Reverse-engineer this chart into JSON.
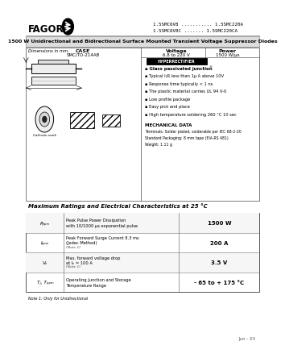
{
  "title_part1": "1.5SMC6V8 ........... 1.5SMC220A",
  "title_part2": "1.5SMC6V8C ....... 1.5SMC220CA",
  "main_title": "1500 W Unidirectional and Bidirectional Surface Mounted Transient Voltage Suppressor Diodes",
  "case_label_1": "CASE",
  "case_label_2": "SMC/TO-214AB",
  "voltage_label_1": "Voltage",
  "voltage_label_2": "6.8 to 220 V",
  "power_label_1": "Power",
  "power_label_2": "1500 W/μs",
  "brand": "FAGOR",
  "features": [
    "Glass passivated junction",
    "Typical I₂R less than 1μ A above 10V",
    "Response time typically < 1 ns",
    "The plastic material carries UL 94 V-0",
    "Low profile package",
    "Easy pick and place",
    "High temperature soldering 260 °C 10 sec"
  ],
  "mech_title": "MECHANICAL DATA",
  "mech_lines": [
    "Terminals: Solder plated, solderable per IEC 68-2-20",
    "Standard Packaging: 8 mm tape (EIA-RS 481)",
    "Weight: 1.11 g"
  ],
  "table_title": "Maximum Ratings and Electrical Characteristics at 25 °C",
  "rows": [
    {
      "symbol": "Pₚₚₘ",
      "desc1": "Peak Pulse Power Dissipation",
      "desc2": "with 10/1000 μs exponential pulse",
      "desc3": "",
      "value": "1500 W",
      "note": ""
    },
    {
      "symbol": "Iₚₚₘ",
      "desc1": "Peak Forward Surge Current 8.3 ms",
      "desc2": "(Jedec Method)",
      "desc3": "(Note 1)",
      "value": "200 A",
      "note": "1"
    },
    {
      "symbol": "Vₙ",
      "desc1": "Max. forward voltage drop",
      "desc2": "at Iₙ = 100 A",
      "desc3": "(Note 1)",
      "value": "3.5 V",
      "note": "1"
    },
    {
      "symbol": "Tⱼ, Tₚₚₘ",
      "desc1": "Operating Junction and Storage",
      "desc2": "Temperature Range",
      "desc3": "",
      "value": "- 65 to + 175 °C",
      "note": ""
    }
  ],
  "note_text": "Note 1: Only for Unidirectional",
  "date_text": "Jun - 03",
  "bg_color": "#ffffff"
}
